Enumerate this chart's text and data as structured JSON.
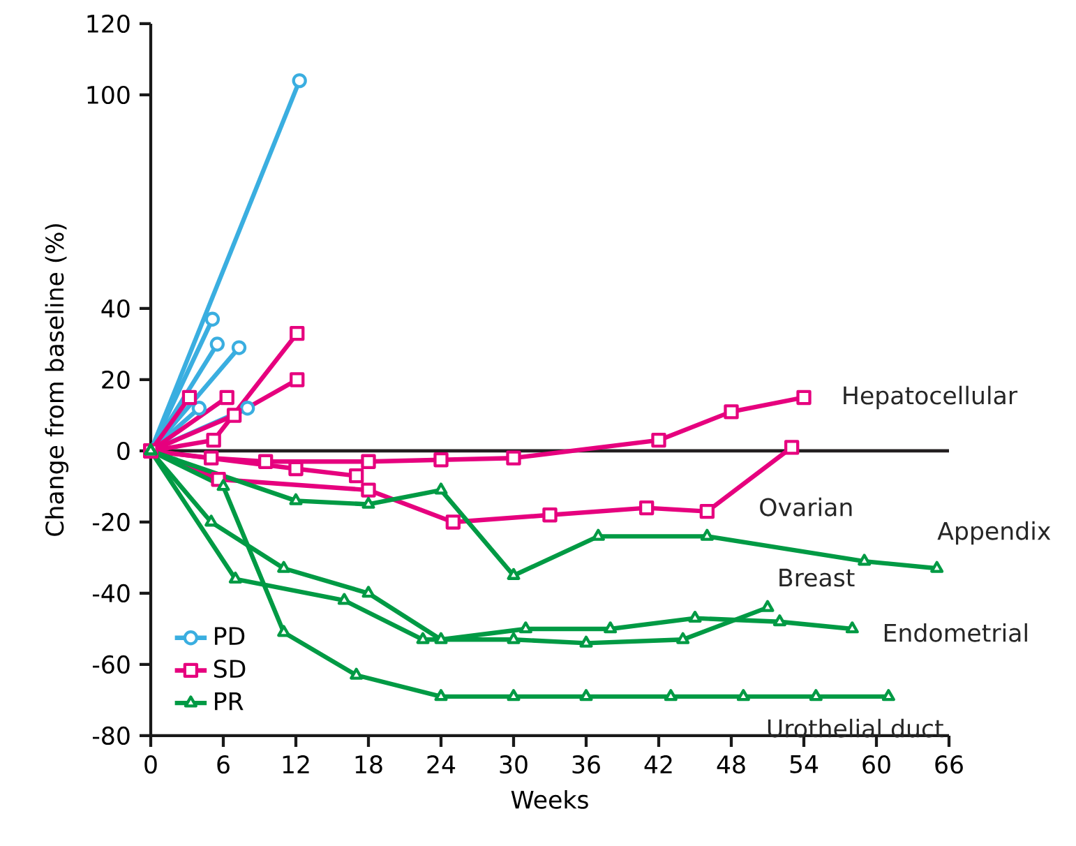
{
  "chart_data": {
    "type": "line",
    "xlabel": "Weeks",
    "ylabel": "Change from baseline (%)",
    "xlim": [
      0,
      66
    ],
    "ylim": [
      -80,
      120
    ],
    "xticks": [
      0,
      6,
      12,
      18,
      24,
      30,
      36,
      42,
      48,
      54,
      60,
      66
    ],
    "yticks": [
      -80,
      -60,
      -40,
      -20,
      0,
      20,
      40,
      100,
      120
    ],
    "legend": "bottom left",
    "ref_lines": [
      {
        "axis": "y",
        "value": 0,
        "color": "#231f20"
      }
    ],
    "series": [
      {
        "name": "PD",
        "color": "#3aaee0",
        "marker": "circle",
        "x": [
          0,
          12.3
        ],
        "values": [
          0,
          104
        ]
      },
      {
        "color": "#3aaee0",
        "marker": "circle",
        "x": [
          0,
          5.1
        ],
        "values": [
          0,
          37
        ]
      },
      {
        "color": "#3aaee0",
        "marker": "circle",
        "x": [
          0,
          5.5
        ],
        "values": [
          0,
          30
        ]
      },
      {
        "color": "#3aaee0",
        "marker": "circle",
        "x": [
          0,
          7.3
        ],
        "values": [
          0,
          29
        ]
      },
      {
        "color": "#3aaee0",
        "marker": "circle",
        "x": [
          0,
          4
        ],
        "values": [
          0,
          12
        ]
      },
      {
        "color": "#3aaee0",
        "marker": "circle",
        "x": [
          0,
          8
        ],
        "values": [
          0,
          12
        ]
      },
      {
        "name": "SD",
        "color": "#e6007e",
        "marker": "square",
        "x": [
          0,
          5,
          9.5,
          18,
          24,
          30,
          42,
          48,
          54
        ],
        "values": [
          0,
          -2,
          -3,
          -3,
          -2.5,
          -2,
          3,
          11,
          15
        ]
      },
      {
        "color": "#e6007e",
        "marker": "square",
        "x": [
          0,
          5.6,
          18,
          25,
          33,
          41,
          46,
          53
        ],
        "values": [
          0,
          -8,
          -11,
          -20,
          -18,
          -16,
          -17,
          1
        ]
      },
      {
        "color": "#e6007e",
        "marker": "square",
        "x": [
          0,
          12,
          17
        ],
        "values": [
          0,
          -5,
          -7
        ]
      },
      {
        "color": "#e6007e",
        "marker": "square",
        "x": [
          0,
          3.2
        ],
        "values": [
          0,
          15
        ]
      },
      {
        "color": "#e6007e",
        "marker": "square",
        "x": [
          0,
          6.3
        ],
        "values": [
          0,
          15
        ]
      },
      {
        "color": "#e6007e",
        "marker": "square",
        "x": [
          0,
          6.9,
          12.1
        ],
        "values": [
          0,
          10,
          20
        ]
      },
      {
        "color": "#e6007e",
        "marker": "square",
        "x": [
          0,
          5.2,
          12.1
        ],
        "values": [
          0,
          3,
          33
        ]
      },
      {
        "name": "PR",
        "color": "#009a44",
        "marker": "triangle",
        "x": [
          0,
          12,
          18,
          24,
          30,
          37,
          46,
          59,
          65
        ],
        "values": [
          0,
          -14,
          -15,
          -11,
          -35,
          -24,
          -24,
          -31,
          -33
        ]
      },
      {
        "color": "#009a44",
        "marker": "triangle",
        "x": [
          0,
          5,
          11,
          18,
          24,
          31,
          38,
          45,
          52,
          58
        ],
        "values": [
          0,
          -20,
          -33,
          -40,
          -53,
          -50,
          -50,
          -47,
          -48,
          -50
        ]
      },
      {
        "color": "#009a44",
        "marker": "triangle",
        "x": [
          0,
          7,
          16,
          22.5,
          30,
          36,
          44,
          51
        ],
        "values": [
          0,
          -36,
          -42,
          -53,
          -53,
          -54,
          -53,
          -44
        ]
      },
      {
        "color": "#009a44",
        "marker": "triangle",
        "x": [
          0,
          6,
          11,
          17,
          24,
          30,
          36,
          43,
          49,
          55,
          61
        ],
        "values": [
          0,
          -10,
          -51,
          -63,
          -69,
          -69,
          -69,
          -69,
          -69,
          -69,
          -69
        ]
      }
    ],
    "annotations": [
      {
        "text": "Hepatocellular",
        "x": 54,
        "y": 15
      },
      {
        "text": "Ovarian",
        "x": 53,
        "y": 1
      },
      {
        "text": "Appendix",
        "x": 65,
        "y": -33
      },
      {
        "text": "Breast",
        "x": 51,
        "y": -44
      },
      {
        "text": "Endometrial",
        "x": 58,
        "y": -50
      },
      {
        "text": "Urothelial duct",
        "x": 61,
        "y": -69
      }
    ]
  }
}
